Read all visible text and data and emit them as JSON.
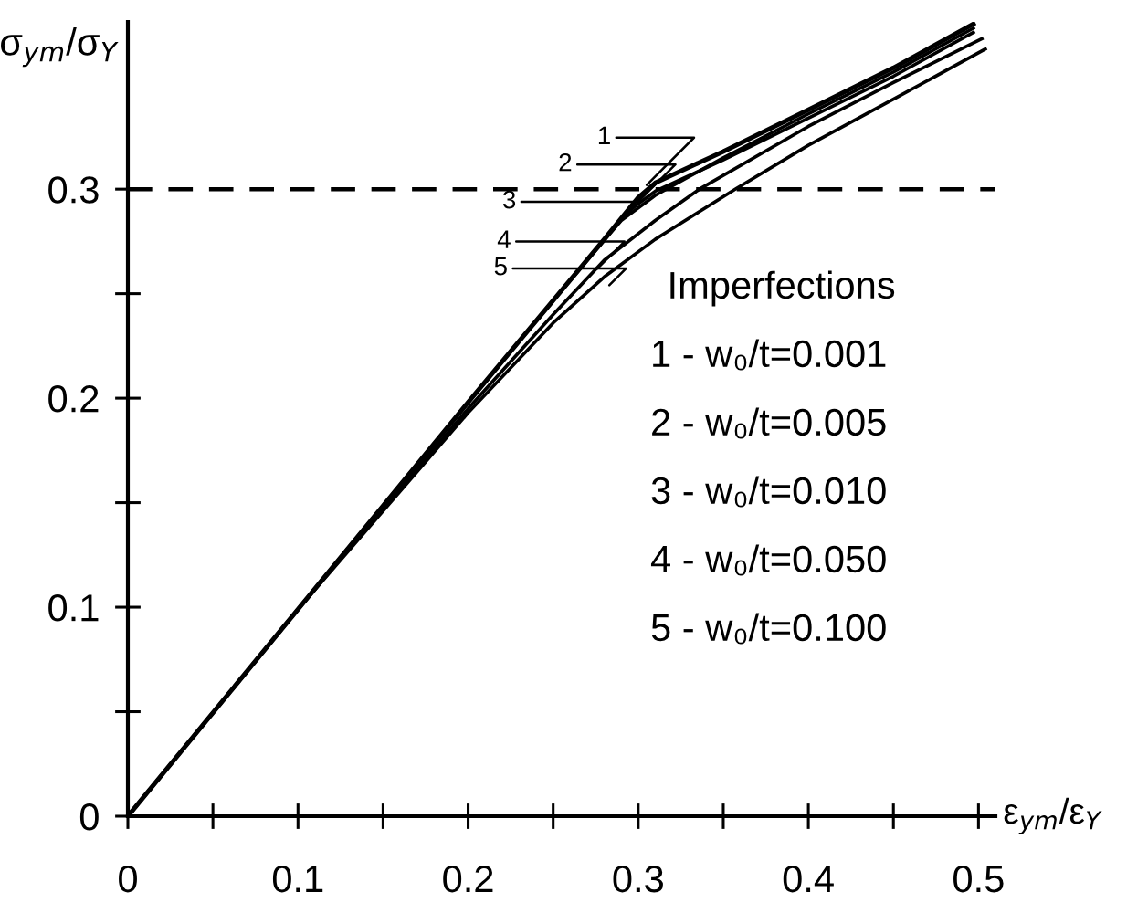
{
  "chart_data": {
    "type": "line",
    "xlabel": "ε$_{ym}$/ε$_{Y}$",
    "ylabel": "σ$_{ym}$/σ$_{Y}$",
    "xlim": [
      0,
      0.51
    ],
    "ylim": [
      0,
      0.38
    ],
    "xticks": [
      0,
      {
        "value": 0.05,
        "label": null
      },
      0.1,
      {
        "value": 0.15,
        "label": null
      },
      0.2,
      {
        "value": 0.25,
        "label": null
      },
      0.3,
      {
        "value": 0.35,
        "label": null
      },
      0.4,
      {
        "value": 0.45,
        "label": null
      },
      0.5
    ],
    "yticks": [
      0,
      {
        "value": 0.05,
        "label": null
      },
      0.1,
      {
        "value": 0.15,
        "label": null
      },
      0.2,
      {
        "value": 0.25,
        "label": null
      },
      0.3
    ],
    "grid": false,
    "ref_lines": [
      {
        "axis": "y",
        "value": 0.3,
        "label": null,
        "color": "#000000",
        "line_style": "dashed"
      }
    ],
    "series": [
      {
        "color": "#000000",
        "x": [
          0,
          0.1,
          0.2,
          0.28,
          0.3,
          0.31,
          0.35,
          0.4,
          0.45,
          0.497
        ],
        "values": [
          0,
          0.099,
          0.198,
          0.276,
          0.296,
          0.303,
          0.318,
          0.338,
          0.358,
          0.379
        ]
      },
      {
        "color": "#000000",
        "x": [
          0,
          0.1,
          0.2,
          0.28,
          0.295,
          0.31,
          0.35,
          0.4,
          0.45,
          0.497
        ],
        "values": [
          0,
          0.099,
          0.198,
          0.276,
          0.29,
          0.299,
          0.314,
          0.334,
          0.354,
          0.375
        ]
      },
      {
        "color": "#000000",
        "x": [
          0,
          0.1,
          0.2,
          0.27,
          0.29,
          0.31,
          0.35,
          0.4,
          0.45,
          0.497
        ],
        "values": [
          0,
          0.099,
          0.198,
          0.266,
          0.285,
          0.297,
          0.315,
          0.336,
          0.356,
          0.377
        ]
      },
      {
        "color": "#000000",
        "x": [
          0,
          0.1,
          0.2,
          0.25,
          0.28,
          0.31,
          0.336,
          0.4,
          0.45,
          0.502
        ],
        "values": [
          0,
          0.099,
          0.195,
          0.24,
          0.266,
          0.285,
          0.3,
          0.33,
          0.351,
          0.372
        ]
      },
      {
        "color": "#000000",
        "x": [
          0,
          0.1,
          0.2,
          0.25,
          0.28,
          0.31,
          0.357,
          0.4,
          0.45,
          0.504
        ],
        "values": [
          0,
          0.099,
          0.193,
          0.236,
          0.258,
          0.276,
          0.3,
          0.321,
          0.343,
          0.367
        ]
      }
    ],
    "annotations": [
      {
        "text": "1",
        "x": 0.305,
        "y": 0.302
      },
      {
        "text": "2",
        "x": 0.3,
        "y": 0.294
      },
      {
        "text": "3",
        "x": 0.285,
        "y": 0.281
      },
      {
        "text": "4",
        "x": 0.276,
        "y": 0.262
      },
      {
        "text": "5",
        "x": 0.283,
        "y": 0.254
      },
      "Imperfections",
      "1 - w₀/t=0.001",
      "2 - w₀/t=0.005",
      "3 - w₀/t=0.010",
      "4 - w₀/t=0.050",
      "5 - w₀/t=0.100"
    ]
  }
}
